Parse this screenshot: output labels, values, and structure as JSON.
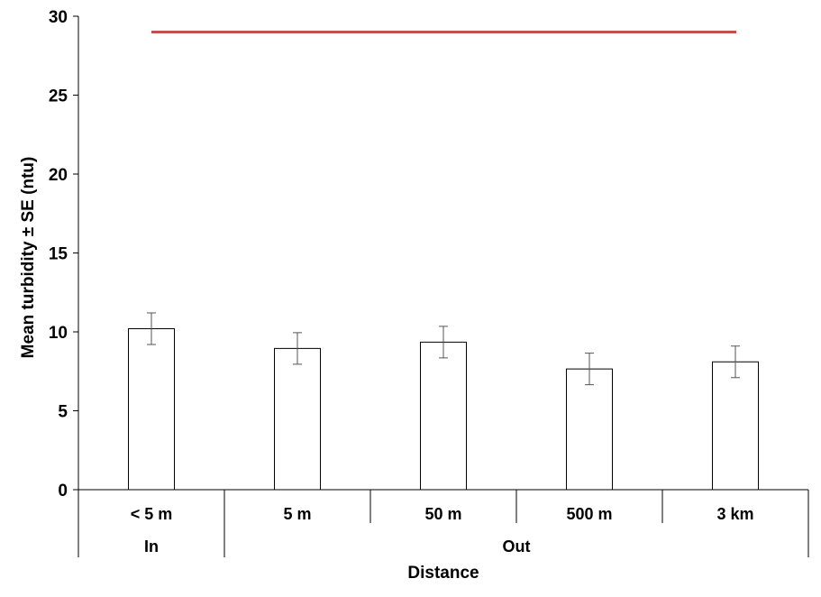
{
  "chart_data": {
    "type": "bar",
    "categories": [
      "< 5 m",
      "5 m",
      "50 m",
      "500 m",
      "3 km"
    ],
    "groups": [
      {
        "label": "In",
        "span": 1
      },
      {
        "label": "Out",
        "span": 4
      }
    ],
    "values": [
      10.2,
      8.95,
      9.35,
      7.65,
      8.1
    ],
    "errors": [
      1.0,
      1.0,
      1.0,
      1.0,
      1.0
    ],
    "reference_line": {
      "value": 29,
      "color": "#c0504d"
    },
    "xlabel": "Distance",
    "ylabel": "Mean turbidity ± SE (ntu)",
    "ylim": [
      0,
      30
    ],
    "yticks": [
      0,
      5,
      10,
      15,
      20,
      25,
      30
    ],
    "bar_fill": "#ffffff",
    "bar_stroke": "#000000",
    "grid": false
  }
}
